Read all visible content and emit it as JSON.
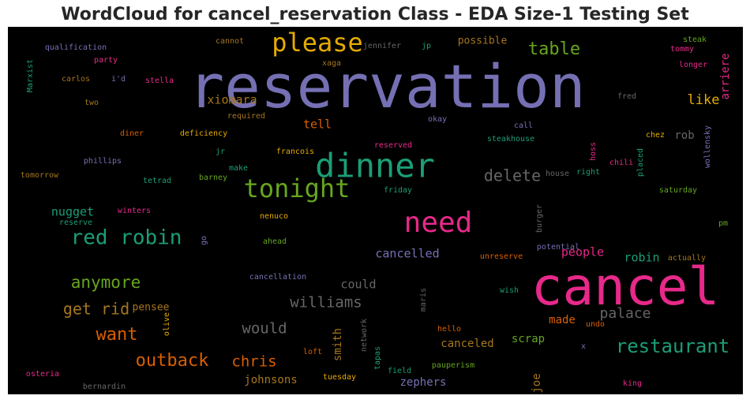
{
  "title": "WordCloud for cancel_reservation Class - EDA Size-1 Testing Set",
  "colors": {
    "background": "#000000",
    "purple": "#7570b3",
    "green": "#1b9e77",
    "orange": "#d95f02",
    "pink": "#e7298a",
    "lime": "#66a61e",
    "gold": "#e6ab02",
    "brown": "#a6761d",
    "gray": "#666666"
  },
  "chart_data": {
    "type": "wordcloud",
    "words": [
      {
        "text": "reservation",
        "weight": 76,
        "color": "purple"
      },
      {
        "text": "cancel",
        "weight": 66,
        "color": "pink"
      },
      {
        "text": "dinner",
        "weight": 42,
        "color": "green"
      },
      {
        "text": "need",
        "weight": 36,
        "color": "pink"
      },
      {
        "text": "tonight",
        "weight": 32,
        "color": "lime"
      },
      {
        "text": "please",
        "weight": 32,
        "color": "gold"
      },
      {
        "text": "red robin",
        "weight": 26,
        "color": "green"
      },
      {
        "text": "restaurant",
        "weight": 24,
        "color": "green"
      },
      {
        "text": "outback",
        "weight": 22,
        "color": "orange"
      },
      {
        "text": "table",
        "weight": 22,
        "color": "lime"
      },
      {
        "text": "want",
        "weight": 22,
        "color": "orange"
      },
      {
        "text": "anymore",
        "weight": 21,
        "color": "lime"
      },
      {
        "text": "delete",
        "weight": 20,
        "color": "gray"
      },
      {
        "text": "get rid",
        "weight": 20,
        "color": "brown"
      },
      {
        "text": "williams",
        "weight": 19,
        "color": "gray"
      },
      {
        "text": "would",
        "weight": 19,
        "color": "gray"
      },
      {
        "text": "chris",
        "weight": 19,
        "color": "orange"
      },
      {
        "text": "palace",
        "weight": 18,
        "color": "gray"
      },
      {
        "text": "like",
        "weight": 17,
        "color": "gold"
      },
      {
        "text": "tell",
        "weight": 15,
        "color": "orange"
      },
      {
        "text": "xiomara",
        "weight": 15,
        "color": "brown"
      },
      {
        "text": "robin",
        "weight": 15,
        "color": "green"
      },
      {
        "text": "could",
        "weight": 15,
        "color": "gray"
      },
      {
        "text": "nugget",
        "weight": 15,
        "color": "green"
      },
      {
        "text": "people",
        "weight": 15,
        "color": "pink"
      },
      {
        "text": "cancelled",
        "weight": 15,
        "color": "purple"
      },
      {
        "text": "canceled",
        "weight": 14,
        "color": "brown"
      },
      {
        "text": "scrap",
        "weight": 14,
        "color": "lime"
      },
      {
        "text": "made",
        "weight": 14,
        "color": "orange"
      },
      {
        "text": "johnsons",
        "weight": 14,
        "color": "brown"
      },
      {
        "text": "zephers",
        "weight": 14,
        "color": "purple"
      },
      {
        "text": "smith",
        "weight": 14,
        "color": "brown"
      },
      {
        "text": "joe",
        "weight": 14,
        "color": "brown"
      },
      {
        "text": "pensee",
        "weight": 13,
        "color": "brown"
      },
      {
        "text": "rob",
        "weight": 14,
        "color": "gray"
      },
      {
        "text": "possible",
        "weight": 13,
        "color": "brown"
      },
      {
        "text": "arriere",
        "weight": 14,
        "color": "pink"
      },
      {
        "text": "qualification",
        "weight": 10,
        "color": "purple"
      },
      {
        "text": "party",
        "weight": 10,
        "color": "pink"
      },
      {
        "text": "carlos",
        "weight": 10,
        "color": "brown"
      },
      {
        "text": "i'd",
        "weight": 10,
        "color": "purple"
      },
      {
        "text": "stella",
        "weight": 10,
        "color": "pink"
      },
      {
        "text": "two",
        "weight": 10,
        "color": "brown"
      },
      {
        "text": "Marxist",
        "weight": 10,
        "color": "green"
      },
      {
        "text": "cannot",
        "weight": 10,
        "color": "brown"
      },
      {
        "text": "jennifer",
        "weight": 10,
        "color": "gray"
      },
      {
        "text": "jp",
        "weight": 10,
        "color": "green"
      },
      {
        "text": "xaga",
        "weight": 10,
        "color": "brown"
      },
      {
        "text": "steak",
        "weight": 10,
        "color": "lime"
      },
      {
        "text": "tommy",
        "weight": 10,
        "color": "pink"
      },
      {
        "text": "longer",
        "weight": 10,
        "color": "pink"
      },
      {
        "text": "fred",
        "weight": 10,
        "color": "gray"
      },
      {
        "text": "required",
        "weight": 10,
        "color": "brown"
      },
      {
        "text": "okay",
        "weight": 10,
        "color": "purple"
      },
      {
        "text": "call",
        "weight": 10,
        "color": "purple"
      },
      {
        "text": "diner",
        "weight": 10,
        "color": "orange"
      },
      {
        "text": "deficiency",
        "weight": 10,
        "color": "gold"
      },
      {
        "text": "steakhouse",
        "weight": 10,
        "color": "green"
      },
      {
        "text": "chez",
        "weight": 10,
        "color": "gold"
      },
      {
        "text": "wollensky",
        "weight": 10,
        "color": "purple"
      },
      {
        "text": "jr",
        "weight": 10,
        "color": "green"
      },
      {
        "text": "francois",
        "weight": 10,
        "color": "gold"
      },
      {
        "text": "reserved",
        "weight": 10,
        "color": "pink"
      },
      {
        "text": "hoss",
        "weight": 10,
        "color": "pink"
      },
      {
        "text": "chili",
        "weight": 10,
        "color": "pink"
      },
      {
        "text": "placed",
        "weight": 10,
        "color": "green"
      },
      {
        "text": "phillips",
        "weight": 10,
        "color": "purple"
      },
      {
        "text": "tomorrow",
        "weight": 10,
        "color": "brown"
      },
      {
        "text": "make",
        "weight": 10,
        "color": "green"
      },
      {
        "text": "barney",
        "weight": 10,
        "color": "lime"
      },
      {
        "text": "tetrad",
        "weight": 10,
        "color": "green"
      },
      {
        "text": "friday",
        "weight": 10,
        "color": "green"
      },
      {
        "text": "house",
        "weight": 10,
        "color": "gray"
      },
      {
        "text": "right",
        "weight": 10,
        "color": "green"
      },
      {
        "text": "saturday",
        "weight": 10,
        "color": "lime"
      },
      {
        "text": "winters",
        "weight": 10,
        "color": "pink"
      },
      {
        "text": "reserve",
        "weight": 10,
        "color": "green"
      },
      {
        "text": "nenuco",
        "weight": 10,
        "color": "gold"
      },
      {
        "text": "burger",
        "weight": 10,
        "color": "gray"
      },
      {
        "text": "pm",
        "weight": 10,
        "color": "lime"
      },
      {
        "text": "go",
        "weight": 10,
        "color": "purple"
      },
      {
        "text": "ahead",
        "weight": 10,
        "color": "lime"
      },
      {
        "text": "potential",
        "weight": 10,
        "color": "purple"
      },
      {
        "text": "actually",
        "weight": 10,
        "color": "brown"
      },
      {
        "text": "unreserve",
        "weight": 10,
        "color": "orange"
      },
      {
        "text": "cancellation",
        "weight": 10,
        "color": "purple"
      },
      {
        "text": "maris",
        "weight": 10,
        "color": "gray"
      },
      {
        "text": "wish",
        "weight": 10,
        "color": "green"
      },
      {
        "text": "olive",
        "weight": 10,
        "color": "gold"
      },
      {
        "text": "undo",
        "weight": 10,
        "color": "orange"
      },
      {
        "text": "hello",
        "weight": 10,
        "color": "orange"
      },
      {
        "text": "network",
        "weight": 10,
        "color": "gray"
      },
      {
        "text": "x",
        "weight": 10,
        "color": "purple"
      },
      {
        "text": "loft",
        "weight": 10,
        "color": "orange"
      },
      {
        "text": "tapas",
        "weight": 10,
        "color": "green"
      },
      {
        "text": "field",
        "weight": 10,
        "color": "green"
      },
      {
        "text": "pauperism",
        "weight": 10,
        "color": "lime"
      },
      {
        "text": "tuesday",
        "weight": 10,
        "color": "gold"
      },
      {
        "text": "osteria",
        "weight": 10,
        "color": "pink"
      },
      {
        "text": "bernardin",
        "weight": 10,
        "color": "gray"
      },
      {
        "text": "king",
        "weight": 10,
        "color": "pink"
      }
    ]
  }
}
